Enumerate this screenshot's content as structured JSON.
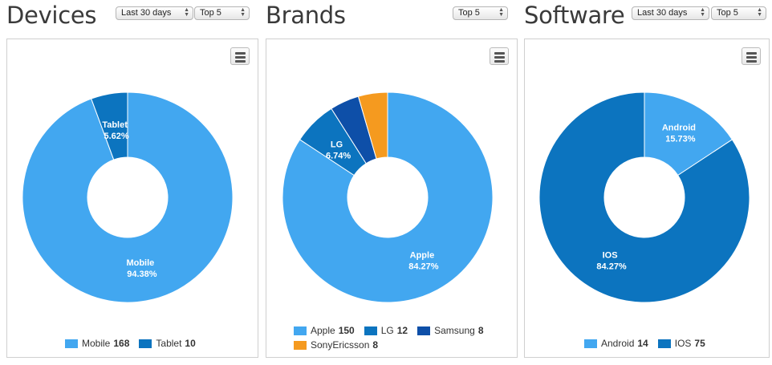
{
  "colors": {
    "light_blue": "#42a7f0",
    "mid_blue": "#0c74bf",
    "dark_blue": "#0e4fa8",
    "orange": "#f59a1f"
  },
  "panels": [
    {
      "title": "Devices",
      "period_select": "Last 30 days",
      "top_select": "Top 5",
      "chart_data": {
        "type": "pie",
        "title": "Devices",
        "donut": true,
        "categories": [
          "Mobile",
          "Tablet"
        ],
        "values": [
          168,
          10
        ],
        "percent_labels": [
          "94.38%",
          "5.62%"
        ],
        "colors": [
          "#42a7f0",
          "#0c74bf"
        ],
        "legend": "bottom"
      }
    },
    {
      "title": "Brands",
      "period_select": "",
      "top_select": "Top 5",
      "chart_data": {
        "type": "pie",
        "title": "Brands",
        "donut": true,
        "categories": [
          "Apple",
          "LG",
          "Samsung",
          "SonyEricsson"
        ],
        "values": [
          150,
          12,
          8,
          8
        ],
        "percent_labels": [
          "84.27%",
          "6.74%",
          "",
          ""
        ],
        "colors": [
          "#42a7f0",
          "#0c74bf",
          "#0e4fa8",
          "#f59a1f"
        ],
        "legend": "bottom"
      }
    },
    {
      "title": "Software",
      "period_select": "Last 30 days",
      "top_select": "Top 5",
      "chart_data": {
        "type": "pie",
        "title": "Software",
        "donut": true,
        "categories": [
          "Android",
          "IOS"
        ],
        "values": [
          14,
          75
        ],
        "percent_labels": [
          "15.73%",
          "84.27%"
        ],
        "colors": [
          "#42a7f0",
          "#0c74bf"
        ],
        "legend": "bottom"
      }
    }
  ]
}
